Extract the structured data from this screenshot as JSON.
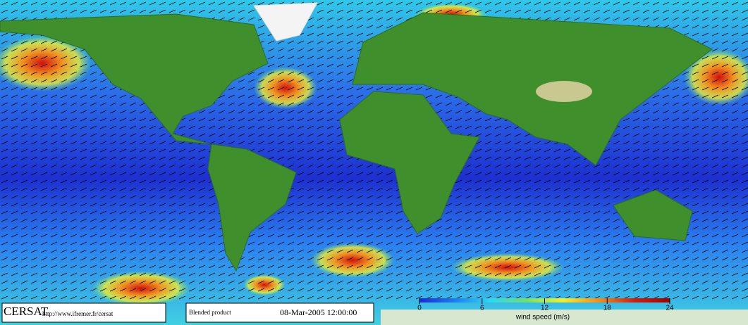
{
  "footer": {
    "logo": "CERSAT",
    "url": "http://www.ifremer.fr/cersat",
    "product": "Blended product",
    "date": "08-Mar-2005 12:00:00"
  },
  "colorbar": {
    "label": "wind speed (m/s)",
    "lim": [
      0,
      24
    ],
    "ticks": [
      0,
      6,
      12,
      18,
      24
    ],
    "colors": [
      "#1a2cd0",
      "#1f7cf0",
      "#30d8f0",
      "#70e070",
      "#f0f030",
      "#f09020",
      "#d02010",
      "#a00000"
    ]
  }
}
